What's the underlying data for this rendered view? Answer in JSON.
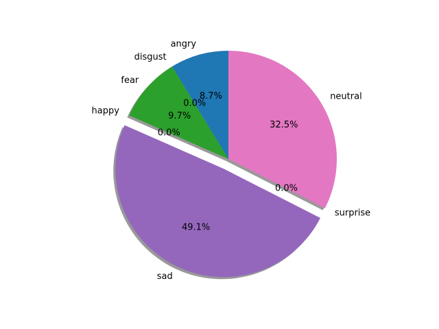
{
  "chart_data": {
    "type": "pie",
    "categories": [
      "angry",
      "disgust",
      "fear",
      "happy",
      "sad",
      "surprise",
      "neutral"
    ],
    "values": [
      8.7,
      0.0,
      9.7,
      0.0,
      49.1,
      0.0,
      32.5
    ],
    "value_labels": [
      "8.7%",
      "0.0%",
      "9.7%",
      "0.0%",
      "49.1%",
      "0.0%",
      "32.5%"
    ],
    "colors": [
      "#1f77b4",
      "#ff7f0e",
      "#2ca02c",
      "#d62728",
      "#9467bd",
      "#8c564b",
      "#e377c2"
    ],
    "explode": [
      0,
      0,
      0,
      0,
      0.1,
      0,
      0
    ],
    "start_angle": 90,
    "shadow": true
  }
}
